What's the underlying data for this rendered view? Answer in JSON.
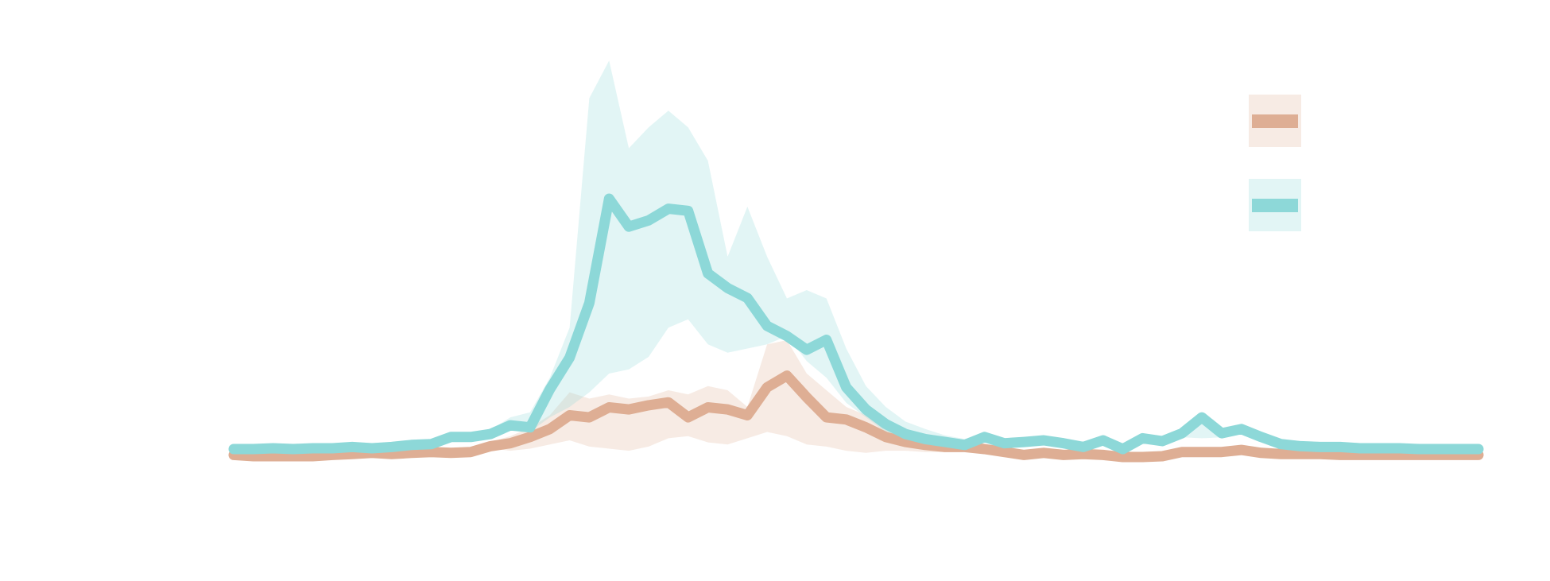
{
  "chart_data": {
    "type": "line",
    "ylim": [
      0,
      100
    ],
    "band_opacity": 0.25,
    "legend": "upper right",
    "series": [
      {
        "color": "#deae94",
        "values": [
          0.5,
          0.2,
          0.2,
          0.2,
          0.2,
          0.5,
          0.7,
          1.0,
          0.7,
          1.0,
          1.2,
          1.0,
          1.2,
          2.6,
          3.3,
          4.8,
          6.7,
          10.0,
          9.5,
          11.9,
          11.4,
          12.4,
          13.1,
          9.5,
          11.9,
          11.4,
          10.0,
          16.7,
          19.5,
          14.3,
          9.5,
          9.0,
          7.1,
          4.8,
          3.6,
          2.9,
          2.4,
          2.4,
          1.9,
          1.2,
          0.5,
          1.0,
          0.5,
          0.7,
          0.5,
          0,
          0,
          0.2,
          1.2,
          1.2,
          1.2,
          1.7,
          1.0,
          0.7,
          0.7,
          0.7,
          0.5,
          0.5,
          0.5,
          0.5,
          0.5,
          0.5,
          0.5,
          0.5
        ],
        "upper": [
          1.5,
          1.2,
          1.2,
          1.2,
          1.2,
          1.5,
          1.7,
          2.0,
          1.7,
          2.0,
          2.2,
          2.0,
          2.2,
          3.6,
          5,
          7,
          10,
          15.5,
          14,
          15,
          14,
          14.5,
          16,
          15,
          17,
          16,
          12,
          27,
          28,
          20,
          16,
          12,
          10,
          7,
          5,
          3.9,
          3.4,
          3.4,
          2.9,
          2.2,
          1.5,
          2.0,
          1.5,
          1.7,
          1.5,
          1.0,
          1.0,
          1.2,
          2.2,
          2.2,
          2.2,
          2.7,
          2.0,
          1.7,
          1.7,
          1.7,
          1.5,
          1.5,
          1.5,
          1.5,
          1.5,
          1.5,
          1.5,
          1.5
        ],
        "lower": [
          0,
          0,
          0,
          0,
          0,
          0,
          0.2,
          0.5,
          0.2,
          0.5,
          0.7,
          0.5,
          0.7,
          2.1,
          1.5,
          2,
          3,
          4,
          2.5,
          2,
          1.5,
          2.5,
          4.5,
          5,
          3.5,
          3,
          4.5,
          6,
          5,
          3,
          2.5,
          1.5,
          1.0,
          1.5,
          1.5,
          1.2,
          1.2,
          1.2,
          1.0,
          0.7,
          0,
          0.5,
          0,
          0.2,
          0,
          0,
          0,
          0,
          0.7,
          0.7,
          0.7,
          1.2,
          0.5,
          0.2,
          0.2,
          0.2,
          0,
          0,
          0,
          0,
          0,
          0,
          0,
          0
        ]
      },
      {
        "color": "#8dd8d8",
        "values": [
          1.9,
          1.9,
          2.1,
          1.9,
          2.1,
          2.1,
          2.4,
          2.1,
          2.4,
          2.9,
          3.1,
          4.8,
          4.8,
          5.5,
          7.6,
          7.1,
          16.2,
          23.8,
          36.9,
          61.9,
          55.2,
          56.7,
          59.5,
          59.0,
          44.0,
          40.5,
          38.1,
          31.4,
          29.0,
          25.7,
          28.1,
          16.7,
          11.4,
          7.9,
          5.5,
          4.3,
          3.6,
          2.9,
          4.8,
          3.3,
          3.6,
          4.0,
          3.3,
          2.4,
          4.0,
          1.9,
          4.5,
          3.8,
          5.7,
          9.5,
          5.7,
          6.7,
          4.8,
          3.1,
          2.6,
          2.4,
          2.4,
          2.1,
          2.1,
          2.1,
          1.9,
          1.9,
          1.9,
          1.9
        ],
        "upper": [
          2.9,
          2.9,
          3.1,
          2.9,
          3.1,
          3.1,
          3.4,
          3.1,
          3.4,
          3.9,
          4.1,
          5.8,
          5.8,
          6.5,
          9.5,
          10.7,
          19,
          31,
          86,
          95,
          74,
          79,
          83,
          79,
          71,
          48,
          60,
          48,
          38,
          40,
          38,
          26,
          17,
          12,
          8.5,
          6.7,
          5.2,
          4.3,
          5.8,
          4.3,
          4.6,
          5.0,
          4.3,
          3.4,
          5.0,
          2.9,
          5.5,
          4.8,
          6.7,
          10.5,
          6.7,
          7.7,
          5.8,
          4.1,
          3.6,
          3.4,
          3.4,
          3.1,
          3.1,
          3.1,
          2.9,
          2.9,
          2.9,
          2.9
        ],
        "lower": [
          0.9,
          0.9,
          1.1,
          0.9,
          1.1,
          1.1,
          1.4,
          1.1,
          1.4,
          1.9,
          2.1,
          3.8,
          3.8,
          4.5,
          6.6,
          6.1,
          9.5,
          12,
          15.5,
          20,
          21,
          24,
          31,
          33,
          27,
          25,
          26,
          27,
          29,
          23,
          19,
          13,
          9.5,
          6,
          4,
          2.9,
          2.6,
          1.9,
          3.8,
          2.3,
          2.6,
          3.0,
          2.3,
          1.4,
          3.0,
          0.9,
          3.5,
          2.8,
          4.7,
          4.5,
          4.7,
          5.7,
          3.8,
          2.1,
          1.6,
          1.4,
          1.4,
          1.1,
          1.1,
          1.1,
          0.9,
          0.9,
          0.9,
          0.9
        ]
      }
    ]
  }
}
